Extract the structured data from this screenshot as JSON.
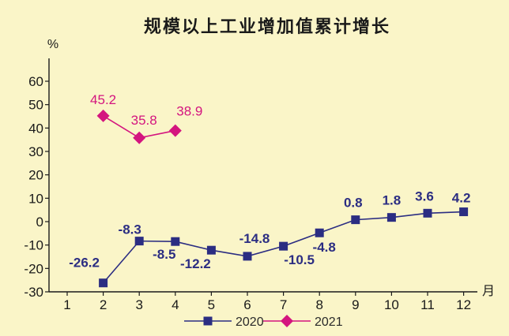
{
  "chart_data": {
    "type": "line",
    "title": "规模以上工业增加值累计增长",
    "ylabel": "%",
    "xlabel": "月",
    "ylim": [
      -30,
      60
    ],
    "yticks": [
      60,
      50,
      40,
      30,
      20,
      10,
      0,
      -10,
      -20,
      -30
    ],
    "categories": [
      "1",
      "2",
      "3",
      "4",
      "5",
      "6",
      "7",
      "8",
      "9",
      "10",
      "11",
      "12"
    ],
    "legend_position": "bottom",
    "grid": false,
    "series": [
      {
        "name": "2020",
        "color": "#2b2d82",
        "marker": "square",
        "values": [
          null,
          -26.2,
          -8.3,
          -8.5,
          -12.2,
          -14.8,
          -10.5,
          -4.8,
          0.8,
          1.8,
          3.6,
          4.2
        ],
        "labels": [
          "",
          "-26.2",
          "-8.3",
          "-8.5",
          "-12.2",
          "-14.8",
          "-10.5",
          "-4.8",
          "0.8",
          "1.8",
          "3.6",
          "4.2"
        ]
      },
      {
        "name": "2021",
        "color": "#d4157f",
        "marker": "diamond",
        "values": [
          null,
          45.2,
          35.8,
          38.9,
          null,
          null,
          null,
          null,
          null,
          null,
          null,
          null
        ],
        "labels": [
          "",
          "45.2",
          "35.8",
          "38.9",
          "",
          "",
          "",
          "",
          "",
          "",
          "",
          ""
        ]
      }
    ]
  }
}
